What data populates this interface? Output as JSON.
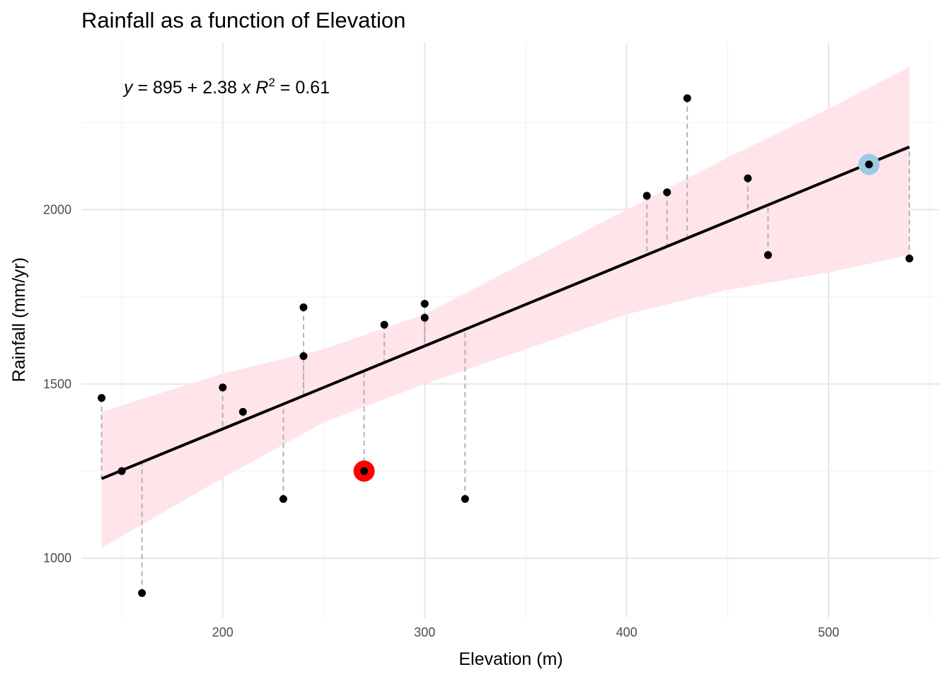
{
  "chart_data": {
    "type": "scatter",
    "title": "Rainfall as a function of Elevation",
    "xlabel": "Elevation (m)",
    "ylabel": "Rainfall (mm/yr)",
    "xlim": [
      130,
      555
    ],
    "ylim": [
      830,
      2480
    ],
    "x_ticks": [
      200,
      300,
      400,
      500
    ],
    "y_ticks": [
      1000,
      1500,
      2000
    ],
    "grid": true,
    "legend": "none",
    "points": [
      {
        "x": 140,
        "y": 1460
      },
      {
        "x": 150,
        "y": 1250
      },
      {
        "x": 160,
        "y": 900
      },
      {
        "x": 200,
        "y": 1490
      },
      {
        "x": 210,
        "y": 1420
      },
      {
        "x": 230,
        "y": 1170
      },
      {
        "x": 240,
        "y": 1720
      },
      {
        "x": 240,
        "y": 1580
      },
      {
        "x": 270,
        "y": 1250
      },
      {
        "x": 280,
        "y": 1670
      },
      {
        "x": 300,
        "y": 1730
      },
      {
        "x": 300,
        "y": 1690
      },
      {
        "x": 320,
        "y": 1170
      },
      {
        "x": 410,
        "y": 2040
      },
      {
        "x": 420,
        "y": 2050
      },
      {
        "x": 430,
        "y": 2320
      },
      {
        "x": 460,
        "y": 2090
      },
      {
        "x": 470,
        "y": 1870
      },
      {
        "x": 520,
        "y": 2130
      },
      {
        "x": 540,
        "y": 1860
      }
    ],
    "highlighted_points": [
      {
        "x": 270,
        "y": 1250,
        "color": "#ff0000"
      },
      {
        "x": 520,
        "y": 2130,
        "color": "#9ecae1"
      }
    ],
    "regression": {
      "intercept": 895,
      "slope": 2.38,
      "r2": 0.61,
      "x_range": [
        140,
        540
      ]
    },
    "confidence_band": {
      "x": [
        140,
        200,
        250,
        300,
        350,
        400,
        450,
        500,
        540
      ],
      "lower": [
        1030,
        1230,
        1390,
        1500,
        1600,
        1700,
        1770,
        1820,
        1870
      ],
      "upper": [
        1420,
        1530,
        1600,
        1700,
        1850,
        2000,
        2150,
        2290,
        2410
      ]
    },
    "equation_label": {
      "y_var": "y",
      "intercept": "895",
      "slope_term": "2.38",
      "x_var": "x",
      "r_var": "R",
      "r_exp": "2",
      "r2": "0.61"
    },
    "colors": {
      "band": "#ffe4ea",
      "line": "#000000",
      "residual": "#b3b3b3",
      "grid_major": "#e6e6e6",
      "grid_minor": "#f0f0f0"
    }
  }
}
